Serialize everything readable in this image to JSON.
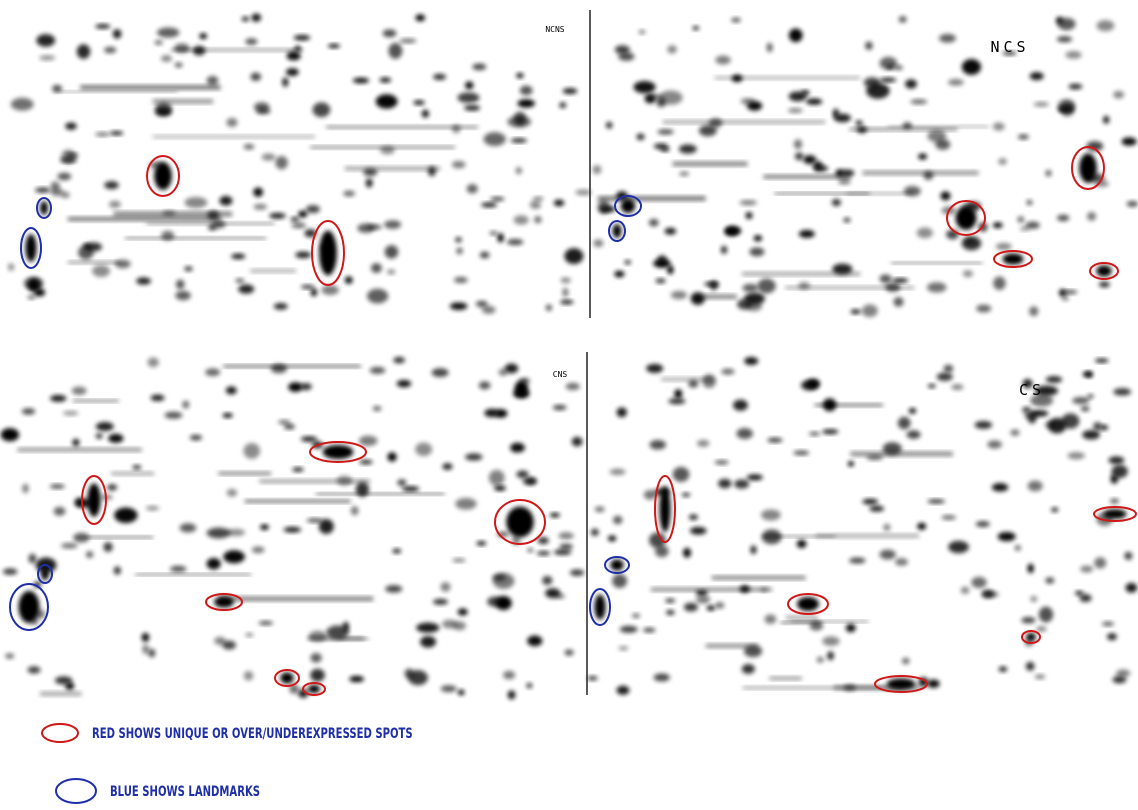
{
  "panels": [
    {
      "label": "NCNS"
    },
    {
      "label": "NCS"
    },
    {
      "label": "CNS"
    },
    {
      "label": "CS"
    }
  ],
  "legend": [
    {
      "label": "RED SHOWS UNIQUE OR OVER/UNDEREXPRESSED SPOTS"
    },
    {
      "label": "BLUE SHOWS LANDMARKS"
    }
  ]
}
